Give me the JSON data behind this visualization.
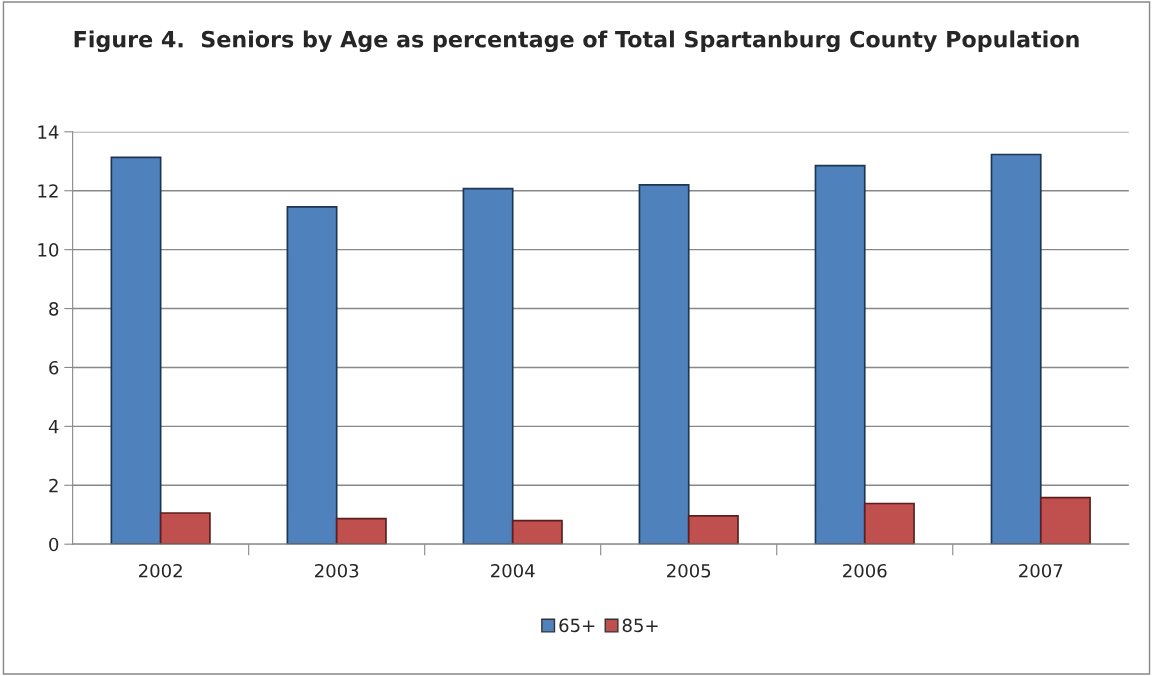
{
  "chart_data": {
    "type": "bar",
    "title": "Figure 4.  Seniors by Age as percentage of Total Spartanburg County Population",
    "categories": [
      "2002",
      "2003",
      "2004",
      "2005",
      "2006",
      "2007"
    ],
    "series": [
      {
        "name": "65+",
        "color": "#4f81bd",
        "values": [
          13.13,
          11.45,
          12.07,
          12.2,
          12.85,
          13.23
        ]
      },
      {
        "name": "85+",
        "color": "#c0504d",
        "values": [
          1.06,
          0.87,
          0.8,
          0.96,
          1.38,
          1.58
        ]
      }
    ],
    "ylim": [
      0,
      14
    ],
    "yticks": [
      0,
      2,
      4,
      6,
      8,
      10,
      12,
      14
    ],
    "grid": "y",
    "legend": "bottom"
  }
}
